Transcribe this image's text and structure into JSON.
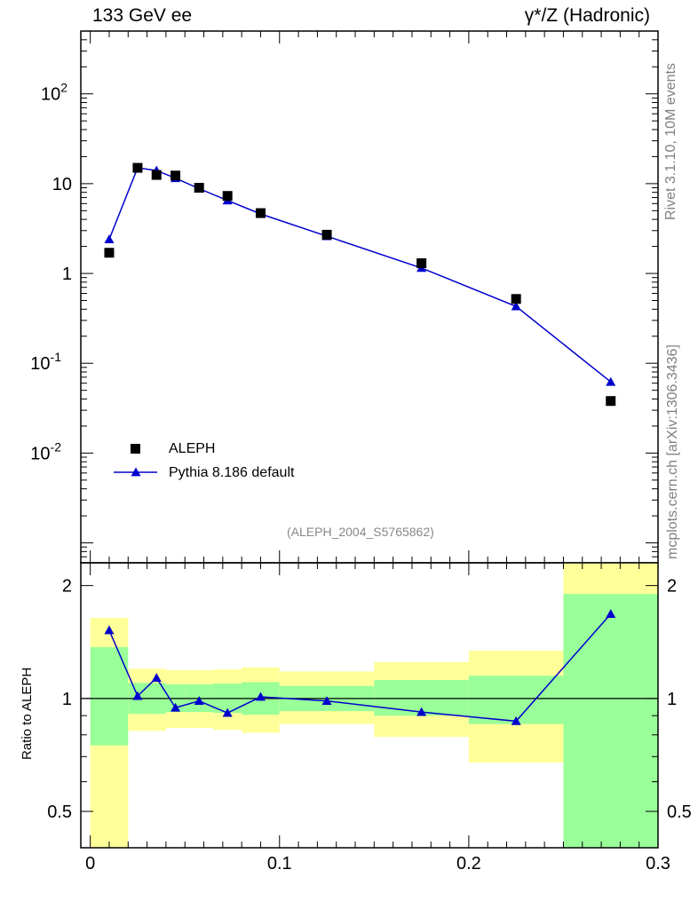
{
  "header": {
    "left": "133 GeV ee",
    "right": "γ*/Z (Hadronic)"
  },
  "side_labels": {
    "rivet": "Rivet 3.1.10,  10M events",
    "mcplots": "mcplots.cern.ch [arXiv:1306.3436]"
  },
  "reference_label": "(ALEPH_2004_S5765862)",
  "legend": {
    "data": "ALEPH",
    "mc": "Pythia 8.186 default"
  },
  "colors": {
    "data": "#000000",
    "mc": "#0000cc",
    "band_inner": "#99ff99",
    "band_outer": "#ffff99"
  },
  "chart_data": [
    {
      "type": "scatter",
      "yscale": "log",
      "ylim": [
        0.0006,
        500
      ],
      "xlim": [
        -0.005,
        0.3
      ],
      "ytick_labels": [
        "10^-2",
        "10^-1",
        "1",
        "10",
        "10^2"
      ],
      "legend_position": "bottom-left",
      "series": [
        {
          "name": "ALEPH",
          "marker": "square",
          "x": [
            0.01,
            0.025,
            0.035,
            0.045,
            0.0575,
            0.0725,
            0.09,
            0.125,
            0.175,
            0.225,
            0.275
          ],
          "y": [
            1.7,
            15.0,
            12.5,
            12.3,
            9.0,
            7.3,
            4.7,
            2.7,
            1.3,
            0.52,
            0.038
          ]
        },
        {
          "name": "Pythia 8.186 default",
          "marker": "triangle",
          "x": [
            0.01,
            0.025,
            0.035,
            0.045,
            0.0575,
            0.0725,
            0.09,
            0.125,
            0.175,
            0.225,
            0.275
          ],
          "y": [
            2.4,
            15.0,
            14.0,
            11.5,
            8.8,
            6.5,
            4.6,
            2.6,
            1.15,
            0.43,
            0.062
          ]
        }
      ]
    },
    {
      "type": "line",
      "ylabel": "Ratio to ALEPH",
      "yscale": "log",
      "ylim": [
        0.4,
        2.3
      ],
      "xlim": [
        -0.005,
        0.3
      ],
      "yticks": [
        0.5,
        1,
        2
      ],
      "ytick_labels": [
        "0.5",
        "1",
        "2"
      ],
      "xticks": [
        0,
        0.1,
        0.2,
        0.3
      ],
      "xtick_labels": [
        "0",
        "0.1",
        "0.2",
        "0.3"
      ],
      "reference_line": 1,
      "bands": [
        {
          "x0": 0.0,
          "x1": 0.02,
          "inner": [
            0.75,
            1.37
          ],
          "outer": [
            0.37,
            1.64
          ]
        },
        {
          "x0": 0.02,
          "x1": 0.03,
          "inner": [
            0.91,
            1.1
          ],
          "outer": [
            0.82,
            1.2
          ]
        },
        {
          "x0": 0.03,
          "x1": 0.04,
          "inner": [
            0.91,
            1.1
          ],
          "outer": [
            0.82,
            1.2
          ]
        },
        {
          "x0": 0.04,
          "x1": 0.05,
          "inner": [
            0.92,
            1.09
          ],
          "outer": [
            0.835,
            1.19
          ]
        },
        {
          "x0": 0.05,
          "x1": 0.065,
          "inner": [
            0.92,
            1.09
          ],
          "outer": [
            0.835,
            1.19
          ]
        },
        {
          "x0": 0.065,
          "x1": 0.08,
          "inner": [
            0.915,
            1.095
          ],
          "outer": [
            0.825,
            1.195
          ]
        },
        {
          "x0": 0.08,
          "x1": 0.1,
          "inner": [
            0.905,
            1.105
          ],
          "outer": [
            0.81,
            1.21
          ]
        },
        {
          "x0": 0.1,
          "x1": 0.15,
          "inner": [
            0.925,
            1.08
          ],
          "outer": [
            0.855,
            1.18
          ]
        },
        {
          "x0": 0.15,
          "x1": 0.2,
          "inner": [
            0.9,
            1.12
          ],
          "outer": [
            0.79,
            1.25
          ]
        },
        {
          "x0": 0.2,
          "x1": 0.25,
          "inner": [
            0.855,
            1.15
          ],
          "outer": [
            0.675,
            1.34
          ]
        },
        {
          "x0": 0.25,
          "x1": 0.3,
          "inner": [
            0.3,
            1.9
          ],
          "outer": [
            0.3,
            3.0
          ]
        }
      ],
      "series": [
        {
          "name": "Pythia 8.186 default",
          "marker": "triangle",
          "x": [
            0.01,
            0.025,
            0.035,
            0.045,
            0.0575,
            0.0725,
            0.09,
            0.125,
            0.175,
            0.225,
            0.275
          ],
          "y": [
            1.52,
            1.015,
            1.135,
            0.945,
            0.985,
            0.915,
            1.01,
            0.985,
            0.92,
            0.87,
            1.68
          ]
        }
      ]
    }
  ]
}
